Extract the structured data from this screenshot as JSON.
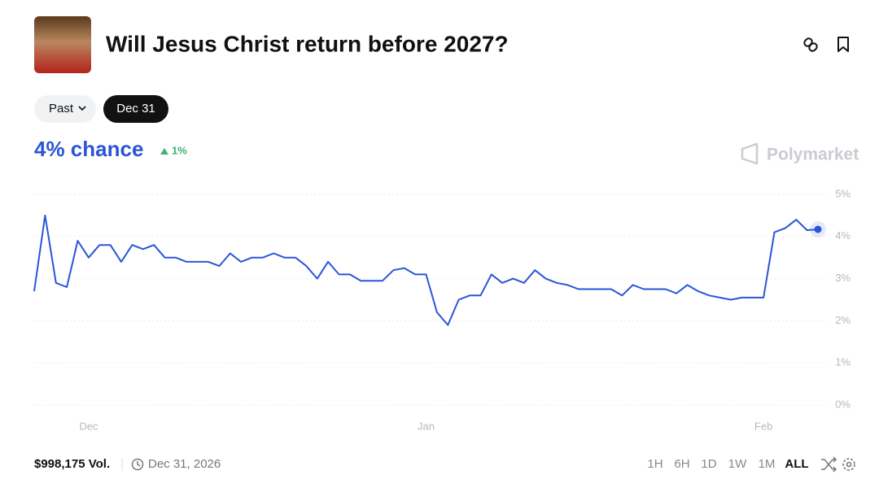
{
  "header": {
    "title": "Will Jesus Christ return before 2027?"
  },
  "filters": {
    "past": "Past",
    "date": "Dec 31"
  },
  "summary": {
    "chance": "4% chance",
    "change": "1%"
  },
  "brand": "Polymarket",
  "footer": {
    "volume": "$998,175 Vol.",
    "end_date": "Dec 31, 2026",
    "ranges": [
      "1H",
      "6H",
      "1D",
      "1W",
      "1M",
      "ALL"
    ]
  },
  "chart_data": {
    "type": "line",
    "color": "#2a55d8",
    "grid": true,
    "ylim": [
      0,
      5
    ],
    "yticks": [
      {
        "value": 0,
        "label": "0%"
      },
      {
        "value": 1,
        "label": "1%"
      },
      {
        "value": 2,
        "label": "2%"
      },
      {
        "value": 3,
        "label": "3%"
      },
      {
        "value": 4,
        "label": "4%"
      },
      {
        "value": 5,
        "label": "5%"
      }
    ],
    "categories": [
      null,
      null,
      null,
      null,
      null,
      "Dec",
      null,
      null,
      null,
      null,
      null,
      null,
      null,
      null,
      null,
      null,
      null,
      null,
      null,
      null,
      null,
      null,
      null,
      null,
      null,
      null,
      null,
      null,
      null,
      null,
      null,
      null,
      null,
      null,
      null,
      null,
      "Jan",
      null,
      null,
      null,
      null,
      null,
      null,
      null,
      null,
      null,
      null,
      null,
      null,
      null,
      null,
      null,
      null,
      null,
      null,
      null,
      null,
      null,
      null,
      null,
      null,
      null,
      null,
      null,
      null,
      null,
      null,
      "Feb",
      null,
      null,
      null,
      null,
      null
    ],
    "values": [
      2.7,
      4.5,
      2.9,
      2.8,
      3.9,
      3.5,
      3.8,
      3.8,
      3.4,
      3.8,
      3.7,
      3.8,
      3.5,
      3.5,
      3.4,
      3.4,
      3.4,
      3.3,
      3.6,
      3.4,
      3.5,
      3.5,
      3.6,
      3.5,
      3.5,
      3.3,
      3.0,
      3.4,
      3.1,
      3.1,
      2.95,
      2.95,
      2.95,
      3.2,
      3.25,
      3.1,
      3.1,
      2.2,
      1.9,
      2.5,
      2.6,
      2.6,
      3.1,
      2.9,
      3.0,
      2.9,
      3.2,
      3.0,
      2.9,
      2.85,
      2.75,
      2.75,
      2.75,
      2.75,
      2.6,
      2.85,
      2.75,
      2.75,
      2.75,
      2.65,
      2.85,
      2.7,
      2.6,
      2.55,
      2.5,
      2.55,
      2.55,
      2.55,
      4.1,
      4.2,
      4.4,
      4.15,
      4.17
    ]
  }
}
